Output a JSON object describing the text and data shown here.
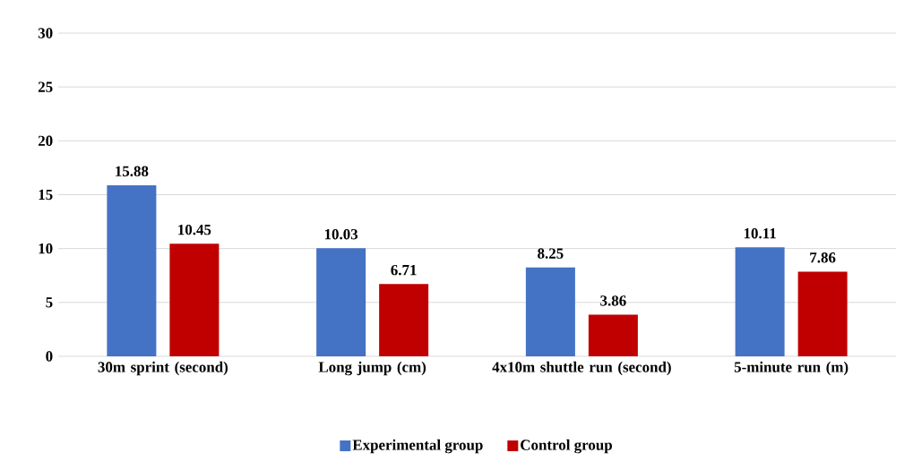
{
  "chart_data": {
    "type": "bar",
    "categories": [
      "30m sprint (second)",
      "Long jump (cm)",
      "4x10m shuttle run (second)",
      "5-minute run (m)"
    ],
    "series": [
      {
        "name": "Experimental group",
        "color": "#4472c4",
        "values": [
          15.88,
          10.03,
          8.25,
          10.11
        ]
      },
      {
        "name": "Control group",
        "color": "#c00000",
        "values": [
          10.45,
          6.71,
          3.86,
          7.86
        ]
      }
    ],
    "ylim": [
      0,
      30
    ],
    "yticks": [
      0,
      5,
      10,
      15,
      20,
      25,
      30
    ],
    "grid": "y",
    "legend": "bottom",
    "data_labels": true
  }
}
